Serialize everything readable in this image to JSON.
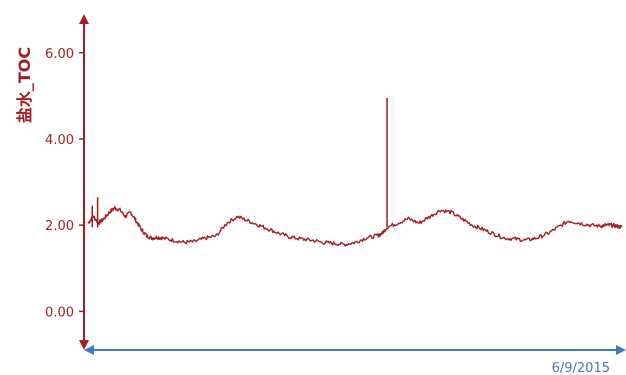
{
  "chart_data": {
    "type": "line",
    "title": "",
    "ylabel": "盐水_TOC",
    "xlabel": "",
    "ylim": [
      -0.85,
      6.9
    ],
    "yticks": [
      {
        "value": 0.0,
        "label": "0.00"
      },
      {
        "value": 2.0,
        "label": "2.00"
      },
      {
        "value": 4.0,
        "label": "4.00"
      },
      {
        "value": 6.0,
        "label": "6.00"
      }
    ],
    "x_axis_date_label": "6/9/2015",
    "x_range": [
      0,
      100
    ],
    "grid": false,
    "legend": "none",
    "series": [
      {
        "color": "#a31e22",
        "x": [
          0,
          1,
          2,
          3,
          4,
          5,
          6,
          7,
          8,
          9,
          10,
          11,
          12,
          13,
          14,
          16,
          18,
          20,
          22,
          24,
          26,
          28,
          30,
          32,
          34,
          36,
          38,
          40,
          42,
          44,
          46,
          48,
          50,
          52,
          54,
          55,
          56,
          58,
          60,
          62,
          64,
          66,
          68,
          70,
          72,
          74,
          76,
          78,
          80,
          82,
          84,
          86,
          88,
          90,
          92,
          94,
          96,
          97,
          98,
          99,
          100
        ],
        "y": [
          2.05,
          2.2,
          2.05,
          2.15,
          2.3,
          2.4,
          2.35,
          2.2,
          2.3,
          2.1,
          1.9,
          1.75,
          1.7,
          1.72,
          1.7,
          1.65,
          1.6,
          1.62,
          1.7,
          1.75,
          2.05,
          2.2,
          2.1,
          2.0,
          1.9,
          1.8,
          1.72,
          1.68,
          1.65,
          1.6,
          1.58,
          1.55,
          1.6,
          1.7,
          1.75,
          1.8,
          1.95,
          2.05,
          2.15,
          2.05,
          2.2,
          2.35,
          2.3,
          2.15,
          2.0,
          1.9,
          1.8,
          1.7,
          1.68,
          1.65,
          1.7,
          1.8,
          1.95,
          2.1,
          2.05,
          2.0,
          1.98,
          2.0,
          2.0,
          1.98,
          1.95
        ]
      }
    ],
    "spikes": [
      {
        "x": 56.0,
        "y": 4.95
      },
      {
        "x": 1.8,
        "y": 2.65
      },
      {
        "x": 0.8,
        "y": 2.45
      }
    ]
  },
  "colors": {
    "line": "#a31e22",
    "y_axis": "#a31e22",
    "x_axis": "#3f7bbf",
    "date_label": "#3f7bbf"
  }
}
